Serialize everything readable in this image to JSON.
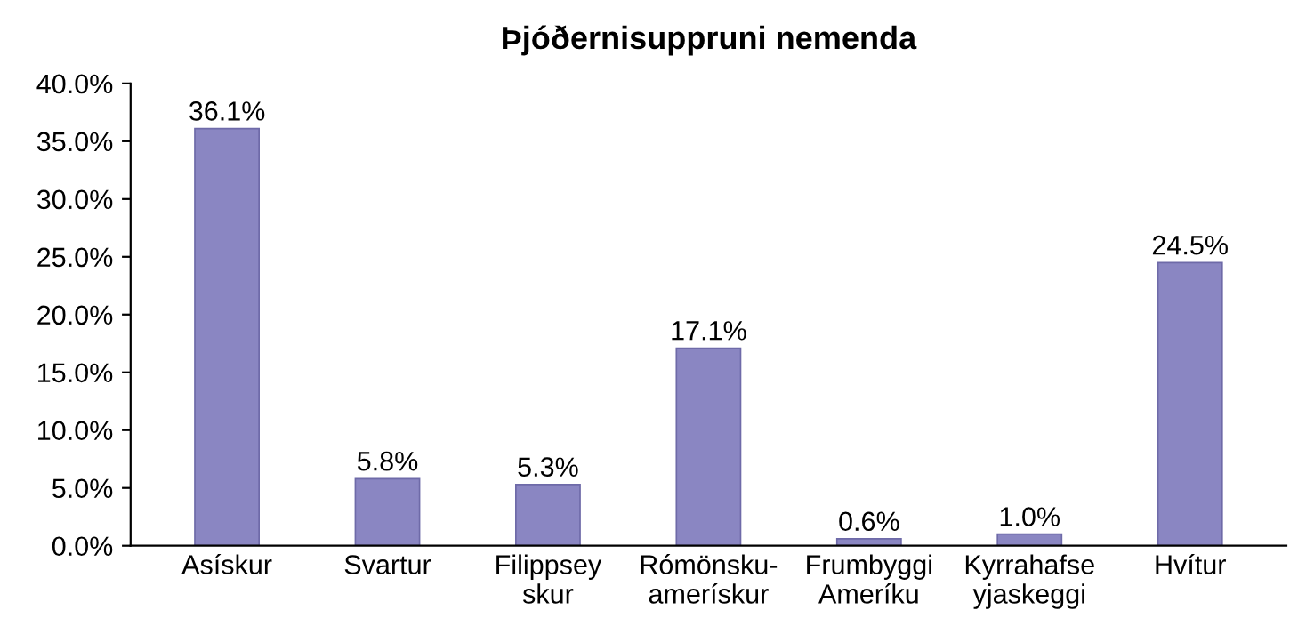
{
  "chart_data": {
    "type": "bar",
    "title": "Þjóðernisuppruni nemenda",
    "categories": [
      "Asískur",
      "Svartur",
      "Filippsey\nskur",
      "Rómönsku-\namerískur",
      "Frumbyggi\nAmeríku",
      "Kyrrahafse\nyjaskeggi",
      "Hvítur"
    ],
    "values": [
      36.1,
      5.8,
      5.3,
      17.1,
      0.6,
      1.0,
      24.5
    ],
    "value_labels": [
      "36.1%",
      "5.8%",
      "5.3%",
      "17.1%",
      "0.6%",
      "1.0%",
      "24.5%"
    ],
    "color": "#8a86c2",
    "ylim": [
      0,
      40
    ],
    "yticks": [
      {
        "value": 0,
        "label": "0.0%"
      },
      {
        "value": 5,
        "label": "5.0%"
      },
      {
        "value": 10,
        "label": "10.0%"
      },
      {
        "value": 15,
        "label": "15.0%"
      },
      {
        "value": 20,
        "label": "20.0%"
      },
      {
        "value": 25,
        "label": "25.0%"
      },
      {
        "value": 30,
        "label": "30.0%"
      },
      {
        "value": 35,
        "label": "35.0%"
      },
      {
        "value": 40,
        "label": "40.0%"
      }
    ],
    "grid": false,
    "legend": false
  }
}
